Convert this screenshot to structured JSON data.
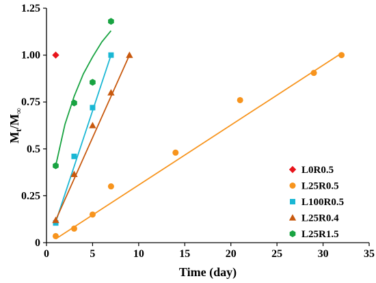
{
  "chart_data": {
    "type": "scatter",
    "xlabel": "Time (day)",
    "ylabel": "M_t/M_∞",
    "ylabel_main": "M",
    "ylabel_sub": "t",
    "ylabel_rest": "/M",
    "ylabel_sub2": "∞",
    "xlim": [
      0,
      35
    ],
    "ylim": [
      0,
      1.25
    ],
    "xticks": [
      "0",
      "5",
      "10",
      "15",
      "20",
      "25",
      "30",
      "35"
    ],
    "yticks": [
      "0",
      "0.25",
      "0.5",
      "0.75",
      "1.00",
      "1.25"
    ],
    "xtick_values": [
      0,
      5,
      10,
      15,
      20,
      25,
      30,
      35
    ],
    "ytick_values": [
      0,
      0.25,
      0.5,
      0.75,
      1.0,
      1.25
    ],
    "grid": false,
    "legend_position": "bottom-right",
    "series": [
      {
        "name": "L0R0.5",
        "color": "#e8141b",
        "marker": "diamond",
        "points": [
          [
            1,
            1.0
          ]
        ],
        "fit": []
      },
      {
        "name": "L25R0.5",
        "color": "#f7941d",
        "marker": "circle",
        "points": [
          [
            1,
            0.035
          ],
          [
            3,
            0.075
          ],
          [
            5,
            0.15
          ],
          [
            7,
            0.3
          ],
          [
            14,
            0.48
          ],
          [
            21,
            0.76
          ],
          [
            29,
            0.905
          ],
          [
            32,
            1.0
          ]
        ],
        "fit": [
          [
            1,
            0.02
          ],
          [
            32,
            1.01
          ]
        ]
      },
      {
        "name": "L100R0.5",
        "color": "#1ab7d4",
        "marker": "square",
        "points": [
          [
            1,
            0.105
          ],
          [
            3,
            0.46
          ],
          [
            5,
            0.72
          ],
          [
            7,
            1.0
          ]
        ],
        "fit": [
          [
            1,
            0.11
          ],
          [
            7,
            1.0
          ]
        ]
      },
      {
        "name": "L25R0.4",
        "color": "#c8590e",
        "marker": "triangle",
        "points": [
          [
            1,
            0.12
          ],
          [
            3,
            0.365
          ],
          [
            5,
            0.625
          ],
          [
            7,
            0.8
          ],
          [
            9,
            1.0
          ]
        ],
        "fit": [
          [
            1,
            0.12
          ],
          [
            9,
            1.0
          ]
        ]
      },
      {
        "name": "L25R1.5",
        "color": "#18a341",
        "marker": "hexagon",
        "points": [
          [
            1,
            0.41
          ],
          [
            3,
            0.745
          ],
          [
            5,
            0.855
          ],
          [
            7,
            1.18
          ]
        ],
        "fit": [
          [
            1,
            0.41
          ],
          [
            2,
            0.63
          ],
          [
            3,
            0.78
          ],
          [
            4,
            0.9
          ],
          [
            5,
            0.99
          ],
          [
            6,
            1.07
          ],
          [
            7,
            1.13
          ]
        ]
      }
    ]
  }
}
